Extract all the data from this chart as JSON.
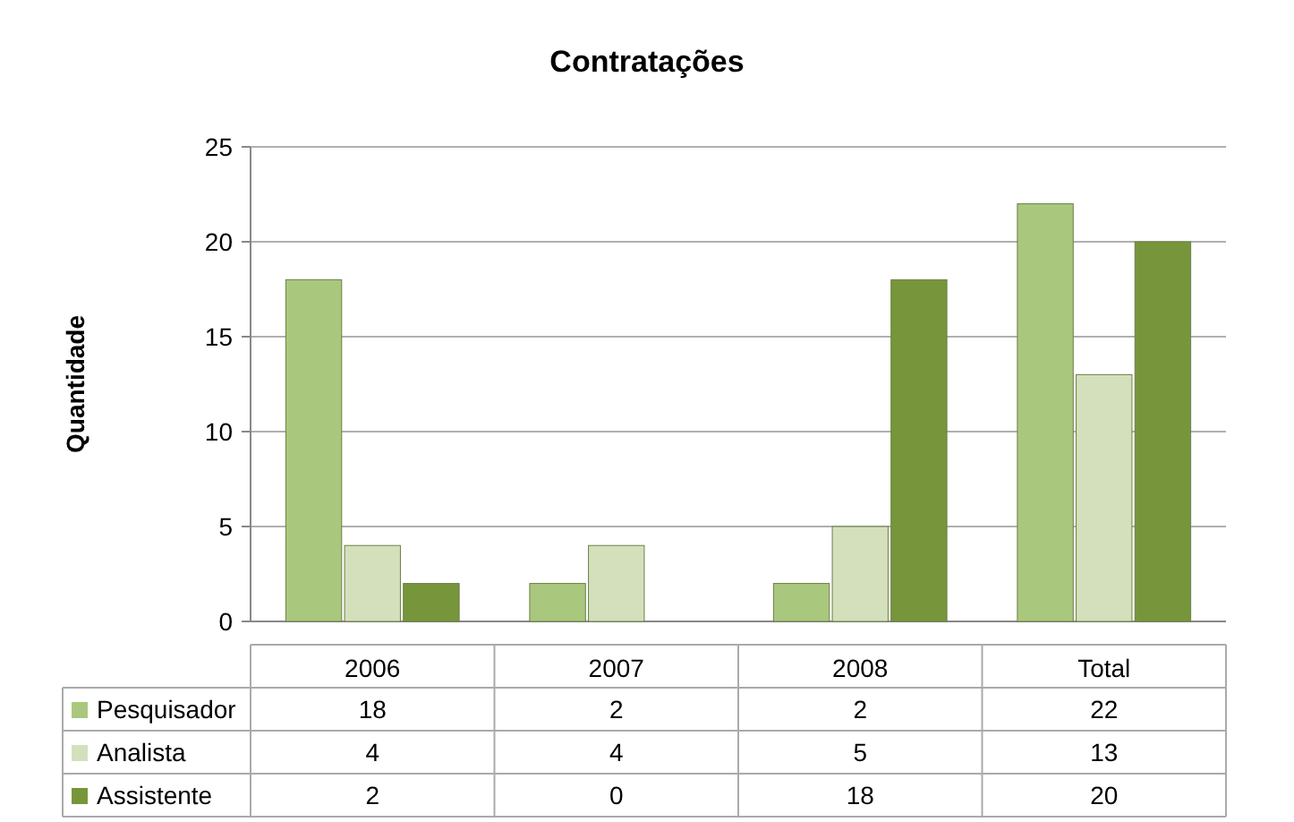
{
  "chart_data": {
    "type": "bar",
    "title": "Contratações",
    "ylabel": "Quantidade",
    "categories": [
      "2006",
      "2007",
      "2008",
      "Total"
    ],
    "series": [
      {
        "name": "Pesquisador",
        "color": "#a9c87e",
        "values": [
          18,
          2,
          2,
          22
        ]
      },
      {
        "name": "Analista",
        "color": "#d4e0bc",
        "values": [
          4,
          4,
          5,
          13
        ]
      },
      {
        "name": "Assistente",
        "color": "#77963c",
        "values": [
          2,
          0,
          18,
          20
        ]
      }
    ],
    "ylim": [
      0,
      25
    ],
    "yticks": [
      0,
      5,
      10,
      15,
      20,
      25
    ],
    "grid": "y",
    "legend": "bottom",
    "data_labels": true
  }
}
